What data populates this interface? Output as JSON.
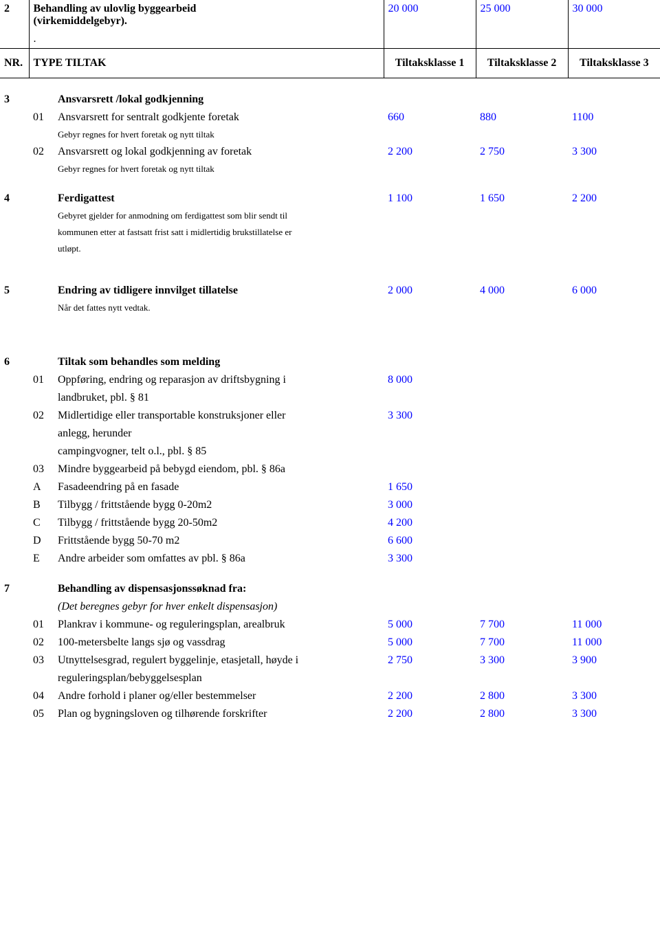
{
  "colors": {
    "value": "#0000ff",
    "text": "#000000",
    "border": "#000000",
    "background": "#ffffff"
  },
  "header": {
    "nr": "NR.",
    "type": "TYPE TILTAK",
    "k1": "Tiltaksklasse 1",
    "k2": "Tiltaksklasse 2",
    "k3": "Tiltaksklasse 3"
  },
  "s2": {
    "nr": "2",
    "title_l1": "Behandling av ulovlig byggearbeid",
    "title_l2": "(virkemiddelgebyr).",
    "dot": ".",
    "v1": "20 000",
    "v2": "25 000",
    "v3": "30 000"
  },
  "s3": {
    "nr": "3",
    "title": "Ansvarsrett /lokal godkjenning",
    "r01": {
      "n": "01",
      "label": "Ansvarsrett for sentralt godkjente foretak",
      "v1": "660",
      "v2": "880",
      "v3": "1100"
    },
    "note1": "Gebyr regnes for hvert foretak og nytt tiltak",
    "r02": {
      "n": "02",
      "label": "Ansvarsrett og lokal godkjenning av foretak",
      "v1": "2 200",
      "v2": "2 750",
      "v3": "3 300"
    },
    "note2": "Gebyr regnes for hvert foretak og nytt tiltak"
  },
  "s4": {
    "nr": "4",
    "title": "Ferdigattest",
    "v1": "1 100",
    "v2": "1 650",
    "v3": "2 200",
    "d1": "Gebyret gjelder for anmodning om ferdigattest som blir sendt til",
    "d2": "kommunen etter at fastsatt frist satt i midlertidig brukstillatelse er",
    "d3": "utløpt."
  },
  "s5": {
    "nr": "5",
    "title": "Endring av tidligere innvilget tillatelse",
    "v1": "2 000",
    "v2": "4 000",
    "v3": "6 000",
    "d": "Når det fattes nytt vedtak."
  },
  "s6": {
    "nr": "6",
    "title": "Tiltak som behandles som melding",
    "r01": {
      "n": "01",
      "l1": "Oppføring, endring og reparasjon av driftsbygning i",
      "l2": "landbruket, pbl. § 81",
      "v": "8 000"
    },
    "r02": {
      "n": "02",
      "l1": "Midlertidige eller transportable konstruksjoner eller",
      "l2": "anlegg, herunder",
      "l3": "campingvogner, telt o.l., pbl. § 85",
      "v": "3 300"
    },
    "r03": {
      "n": "03",
      "label": "Mindre byggearbeid på bebygd eiendom, pbl. § 86a"
    },
    "rA": {
      "n": "A",
      "label": "Fasadeendring på en fasade",
      "v": "1 650"
    },
    "rB": {
      "n": "B",
      "label": "Tilbygg / frittstående bygg 0-20m2",
      "v": "3 000"
    },
    "rC": {
      "n": "C",
      "label": "Tilbygg / frittstående bygg 20-50m2",
      "v": "4 200"
    },
    "rD": {
      "n": "D",
      "label": "Frittstående bygg 50-70 m2",
      "v": "6 600"
    },
    "rE": {
      "n": "E",
      "label": "Andre arbeider som omfattes av pbl. § 86a",
      "v": "3 300"
    }
  },
  "s7": {
    "nr": "7",
    "title": "Behandling av dispensasjonssøknad fra:",
    "sub": "(Det beregnes gebyr for hver enkelt dispensasjon)",
    "r01": {
      "n": "01",
      "label": "Plankrav i kommune- og reguleringsplan, arealbruk",
      "v1": "5 000",
      "v2": "7 700",
      "v3": "11 000"
    },
    "r02": {
      "n": "02",
      "label": "100-metersbelte langs sjø og vassdrag",
      "v1": "5 000",
      "v2": "7 700",
      "v3": "11 000"
    },
    "r03": {
      "n": "03",
      "l1": "Utnyttelsesgrad, regulert byggelinje, etasjetall, høyde i",
      "l2": "reguleringsplan/bebyggelsesplan",
      "v1": "2 750",
      "v2": "3 300",
      "v3": "3 900"
    },
    "r04": {
      "n": "04",
      "label": "Andre forhold i planer og/eller bestemmelser",
      "v1": "2 200",
      "v2": "2 800",
      "v3": "3 300"
    },
    "r05": {
      "n": "05",
      "label": "Plan og bygningsloven og tilhørende forskrifter",
      "v1": "2 200",
      "v2": "2 800",
      "v3": "3 300"
    }
  }
}
